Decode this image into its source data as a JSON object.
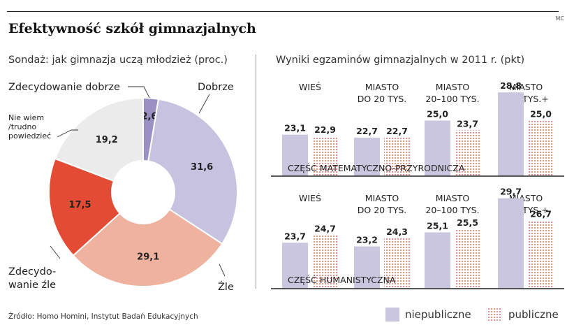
{
  "header": {
    "title": "Efektywność szkół gimnazjalnych",
    "credit": "MC"
  },
  "left_panel": {
    "subtitle": "Sondaż: jak gimnazja uczą młodzież (proc.)"
  },
  "right_panel": {
    "subtitle": "Wyniki egzaminów gimnazjalnych w 2011 r. (pkt)"
  },
  "footer": {
    "source": "Źródło: Homo Homini, Instytut Badań Edukacyjnych"
  },
  "legend": {
    "niepubliczne": "niepubliczne",
    "publiczne": "publiczne"
  },
  "colors": {
    "niepubliczne": "#cbc6df",
    "publiczne_dot": "#e0645a",
    "pie_zd_dobrze": "#9a90c4",
    "pie_dobrze": "#c7c2df",
    "pie_zle": "#efb29f",
    "pie_zd_zle": "#e44b35",
    "pie_nie_wiem": "#ebebeb"
  },
  "chart_data": [
    {
      "type": "pie",
      "title": "Sondaż: jak gimnazja uczą młodzież (proc.)",
      "slices": [
        {
          "label": "Zdecydowanie dobrze",
          "value": 2.6,
          "value_label": "2,6"
        },
        {
          "label": "Dobrze",
          "value": 31.6,
          "value_label": "31,6"
        },
        {
          "label": "Źle",
          "value": 29.1,
          "value_label": "29,1"
        },
        {
          "label": "Zdecydo-\nwanie źle",
          "value": 17.5,
          "value_label": "17,5"
        },
        {
          "label": "Nie wiem\n/trudno\npowiedzieć",
          "value": 19.2,
          "value_label": "19,2"
        }
      ]
    },
    {
      "type": "bar",
      "title": "Wyniki egzaminów gimnazjalnych w 2011 r. (pkt)",
      "section": "CZĘŚĆ MATEMATYCZNO-PRZYRODNICZA",
      "categories": [
        "WIEŚ",
        "MIASTO\nDO 20 TYS.",
        "MIASTO\n20–100 TYS.",
        "MIASTO\n100 TYS.+"
      ],
      "series": [
        {
          "name": "niepubliczne",
          "values": [
            23.1,
            22.7,
            25.0,
            28.8
          ],
          "labels": [
            "23,1",
            "22,7",
            "25,0",
            "28,8"
          ]
        },
        {
          "name": "publiczne",
          "values": [
            22.9,
            22.7,
            23.7,
            25.0
          ],
          "labels": [
            "22,9",
            "22,7",
            "23,7",
            "25,0"
          ]
        }
      ]
    },
    {
      "type": "bar",
      "title": "Wyniki egzaminów gimnazjalnych w 2011 r. (pkt)",
      "section": "CZĘŚĆ HUMANISTYCZNA",
      "categories": [
        "WIEŚ",
        "MIASTO\nDO 20 TYS.",
        "MIASTO\n20–100 TYS.",
        "MIASTO\n100 TYS.+"
      ],
      "series": [
        {
          "name": "niepubliczne",
          "values": [
            23.7,
            23.2,
            25.1,
            29.7
          ],
          "labels": [
            "23,7",
            "23,2",
            "25,1",
            "29,7"
          ]
        },
        {
          "name": "publiczne",
          "values": [
            24.7,
            24.3,
            25.5,
            26.7
          ],
          "labels": [
            "24,7",
            "24,3",
            "25,5",
            "26,7"
          ]
        }
      ]
    }
  ]
}
